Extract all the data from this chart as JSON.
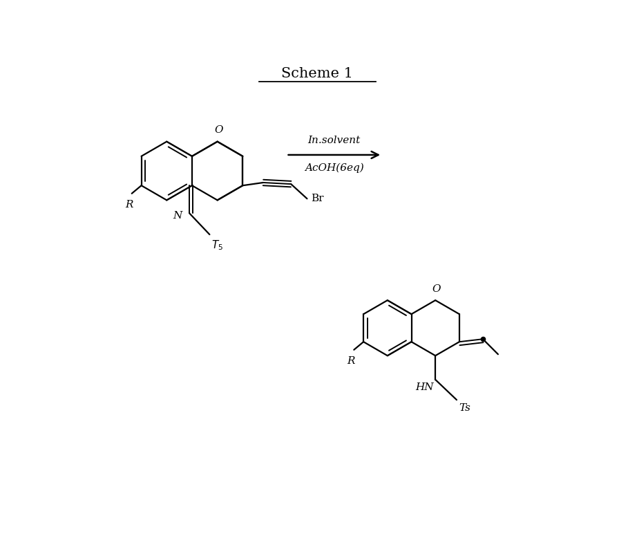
{
  "title": "Scheme 1",
  "arrow_text_top": "In.solvent",
  "arrow_text_bottom": "AcOH(6eq)",
  "bg_color": "#ffffff",
  "line_color": "#000000",
  "font_size_title": 15,
  "font_size_label": 11
}
